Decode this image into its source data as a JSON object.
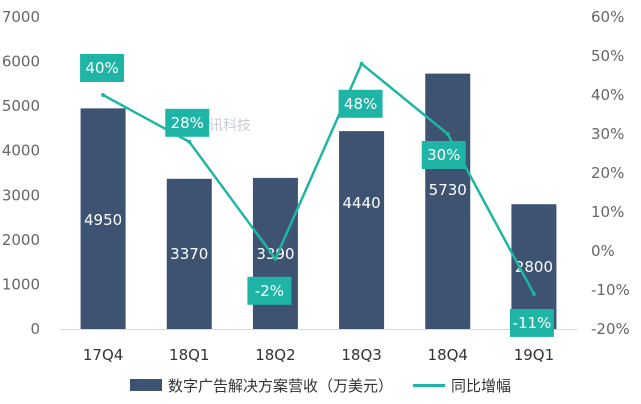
{
  "chart_data": {
    "type": "bar",
    "categories": [
      "17Q4",
      "18Q1",
      "18Q2",
      "18Q3",
      "18Q4",
      "19Q1"
    ],
    "series": [
      {
        "name": "数字广告解决方案营收（万美元）",
        "type": "bar",
        "axis": "left",
        "values": [
          4950,
          3370,
          3390,
          4440,
          5730,
          2800
        ],
        "labels": [
          "4950",
          "3370",
          "3390",
          "4440",
          "5730",
          "2800"
        ],
        "color": "#3d5371"
      },
      {
        "name": "同比增幅",
        "type": "line",
        "axis": "right",
        "values": [
          40,
          28,
          -2,
          48,
          30,
          -11
        ],
        "labels": [
          "40%",
          "28%",
          "-2%",
          "48%",
          "30%",
          "-11%"
        ],
        "color": "#1fb5a6"
      }
    ],
    "y_left": {
      "ylim": [
        0,
        7000
      ],
      "ticks": [
        0,
        1000,
        2000,
        3000,
        4000,
        5000,
        6000,
        7000
      ],
      "tick_labels": [
        "0",
        "1000",
        "2000",
        "3000",
        "4000",
        "5000",
        "6000",
        "7000"
      ]
    },
    "y_right": {
      "ylim": [
        -20,
        60
      ],
      "ticks": [
        -20,
        -10,
        0,
        10,
        20,
        30,
        40,
        50,
        60
      ],
      "tick_labels": [
        "-20%",
        "-10%",
        "0%",
        "10%",
        "20%",
        "30%",
        "40%",
        "50%",
        "60%"
      ]
    },
    "grid": false,
    "legend_position": "bottom",
    "watermark": "腾讯科技",
    "title": "",
    "xlabel": "",
    "ylabel": ""
  }
}
